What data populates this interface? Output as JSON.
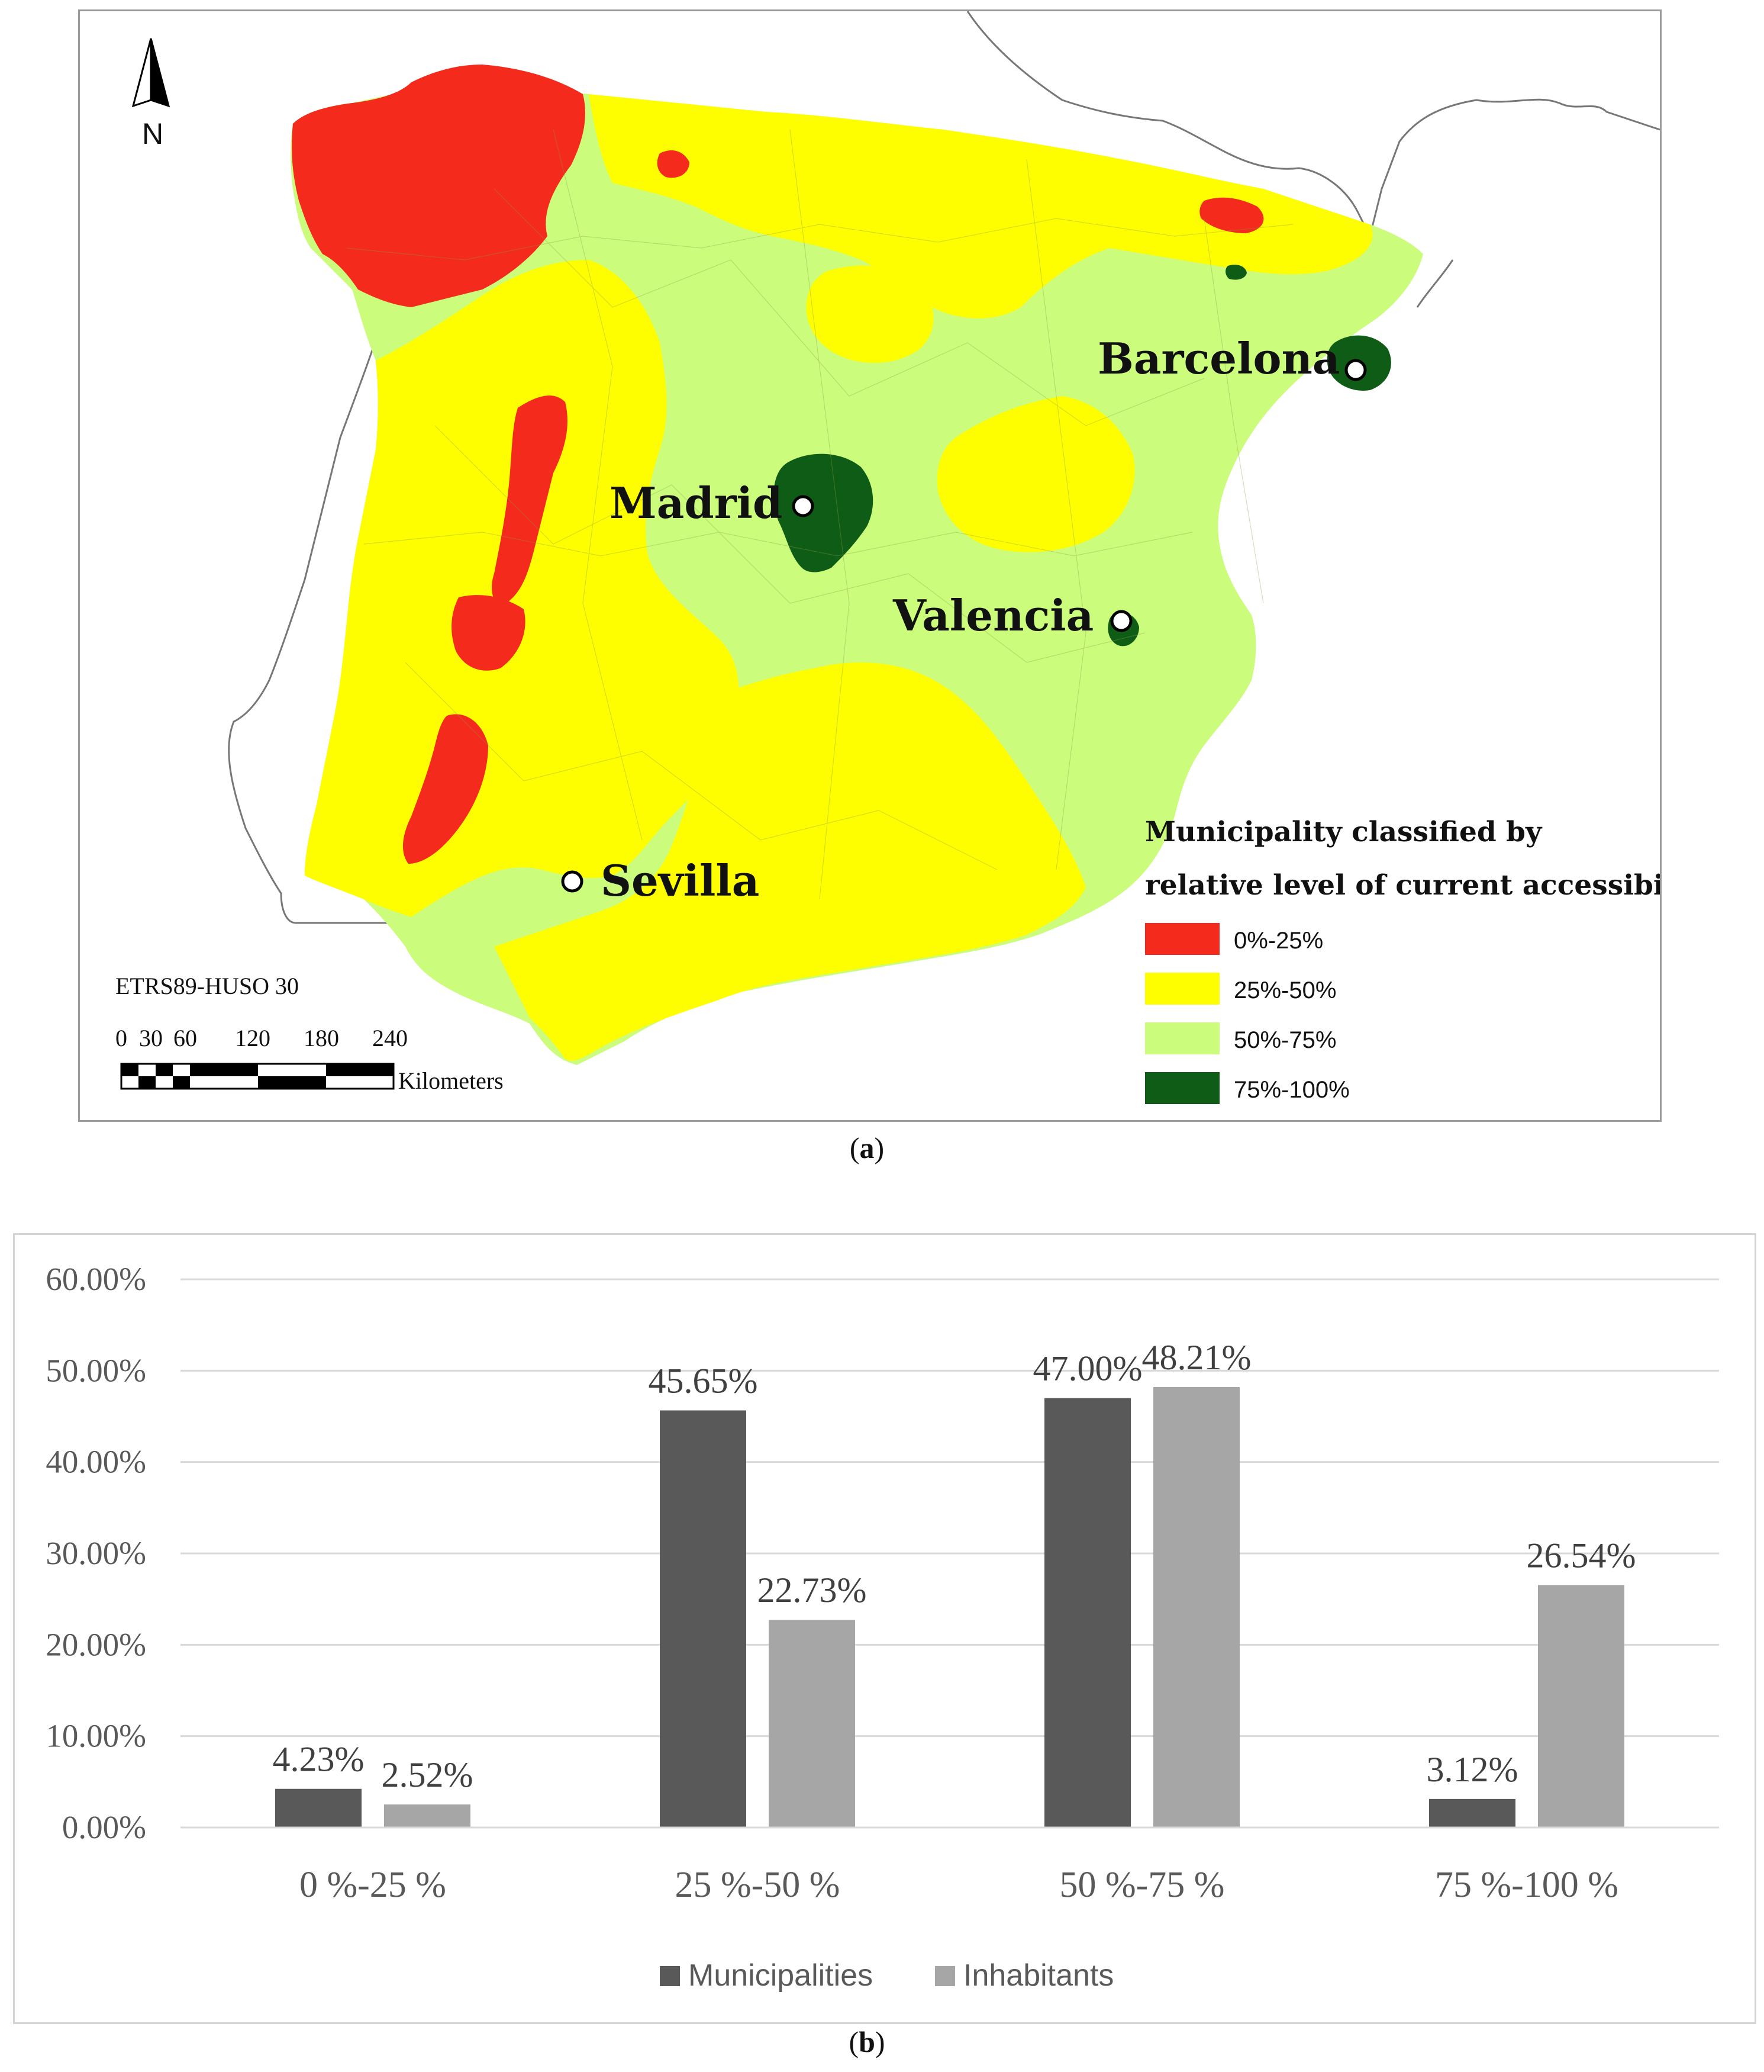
{
  "map": {
    "cities": [
      {
        "name": "Barcelona"
      },
      {
        "name": "Madrid"
      },
      {
        "name": "Valencia"
      },
      {
        "name": "Sevilla"
      }
    ],
    "north_label": "N",
    "crs_label": "ETRS89-HUSO 30",
    "scale_ticks": [
      "0",
      "30",
      "60",
      "120",
      "180",
      "240"
    ],
    "scale_unit": "Kilometers",
    "legend": {
      "title_line1": "Municipality classified  by",
      "title_line2": "relative level of current accessibility",
      "items": [
        {
          "label": "0%-25%",
          "color": "#f42a1c"
        },
        {
          "label": "25%-50%",
          "color": "#fefe00"
        },
        {
          "label": "50%-75%",
          "color": "#ccfc7c"
        },
        {
          "label": "75%-100%",
          "color": "#0f5c16"
        }
      ]
    },
    "caption": "a"
  },
  "chart_data": {
    "type": "bar",
    "categories": [
      "0 %-25 %",
      "25 %-50 %",
      "50 %-75 %",
      "75 %-100 %"
    ],
    "series": [
      {
        "name": "Municipalities",
        "color": "#595959",
        "values": [
          4.23,
          45.65,
          47.0,
          3.12
        ],
        "labels": [
          "4.23%",
          "45.65%",
          "47.00%",
          "3.12%"
        ]
      },
      {
        "name": "Inhabitants",
        "color": "#a6a6a6",
        "values": [
          2.52,
          22.73,
          48.21,
          26.54
        ],
        "labels": [
          "2.52%",
          "22.73%",
          "48.21%",
          "26.54%"
        ]
      }
    ],
    "yticks": [
      "0.00%",
      "10.00%",
      "20.00%",
      "30.00%",
      "40.00%",
      "50.00%",
      "60.00%"
    ],
    "ylim": [
      0,
      60
    ],
    "grid": true,
    "legend_position": "bottom",
    "caption": "b"
  }
}
